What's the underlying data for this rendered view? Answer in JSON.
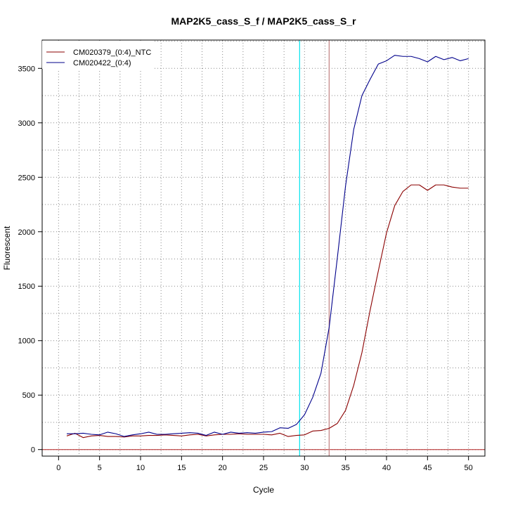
{
  "chart_data": {
    "type": "line",
    "title": "MAP2K5_cass_S_f / MAP2K5_cass_S_r",
    "xlabel": "Cycle",
    "ylabel": "Fluorescent",
    "xlim": [
      -2,
      52
    ],
    "ylim": [
      -60,
      3760
    ],
    "x_ticks": [
      0,
      5,
      10,
      15,
      20,
      25,
      30,
      35,
      40,
      45,
      50
    ],
    "y_ticks": [
      0,
      500,
      1000,
      1500,
      2000,
      2500,
      3000,
      3500
    ],
    "grid": true,
    "legend_position": "top-left",
    "baseline": 0,
    "vertical_lines": [
      {
        "x": 29.4,
        "color": "#00e5ee"
      },
      {
        "x": 33.0,
        "color": "#c08080"
      }
    ],
    "baseline_color": "#b22222",
    "x": [
      1,
      2,
      3,
      4,
      5,
      6,
      7,
      8,
      9,
      10,
      11,
      12,
      13,
      14,
      15,
      16,
      17,
      18,
      19,
      20,
      21,
      22,
      23,
      24,
      25,
      26,
      27,
      28,
      29,
      30,
      31,
      32,
      33,
      34,
      35,
      36,
      37,
      38,
      39,
      40,
      41,
      42,
      43,
      44,
      45,
      46,
      47,
      48,
      49,
      50
    ],
    "series": [
      {
        "name": "CM020379_(0:4)_NTC",
        "color": "#8b0000",
        "values": [
          125,
          150,
          110,
          125,
          130,
          120,
          120,
          115,
          125,
          125,
          130,
          130,
          135,
          130,
          125,
          135,
          140,
          125,
          135,
          140,
          140,
          145,
          140,
          140,
          140,
          135,
          150,
          120,
          130,
          135,
          170,
          175,
          195,
          240,
          360,
          590,
          890,
          1280,
          1640,
          1990,
          2240,
          2370,
          2430,
          2430,
          2380,
          2430,
          2430,
          2410,
          2400,
          2400
        ]
      },
      {
        "name": "CM020422_(0:4)",
        "color": "#00008b",
        "values": [
          145,
          145,
          150,
          140,
          135,
          160,
          145,
          120,
          135,
          145,
          160,
          140,
          140,
          145,
          150,
          155,
          150,
          130,
          160,
          140,
          160,
          150,
          155,
          150,
          160,
          165,
          200,
          195,
          230,
          320,
          480,
          700,
          1120,
          1760,
          2420,
          2940,
          3250,
          3400,
          3540,
          3570,
          3620,
          3610,
          3610,
          3590,
          3560,
          3610,
          3580,
          3600,
          3570,
          3590
        ]
      }
    ]
  }
}
